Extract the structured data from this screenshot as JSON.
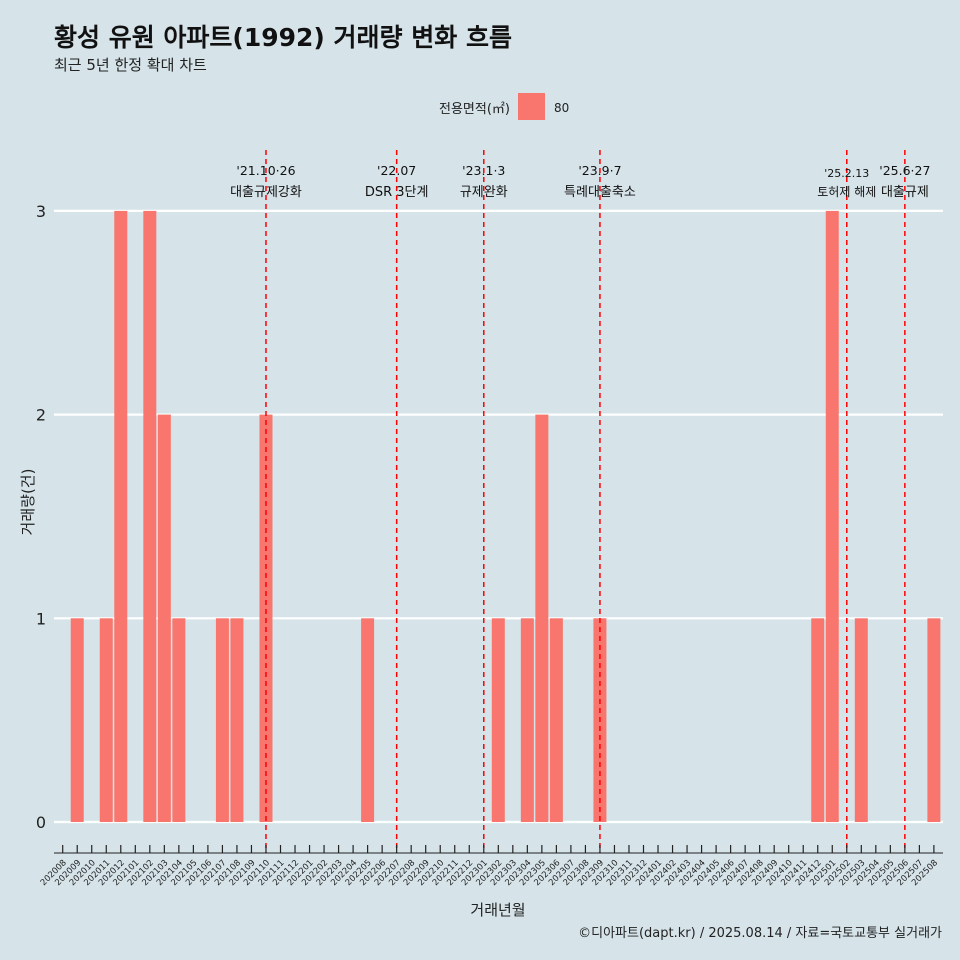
{
  "title": "황성 유원 아파트(1992) 거래량 변화 흐름",
  "subtitle": "최근 5년 한정 확대 차트",
  "caption": "©디아파트(dapt.kr) / 2025.08.14 / 자료=국토교통부 실거래가",
  "legend": {
    "title": "전용면적(㎡)",
    "entries": [
      {
        "label": "80",
        "color": "#f8766d"
      }
    ],
    "position": "top"
  },
  "chart_data": {
    "type": "bar",
    "xlabel": "거래년월",
    "ylabel": "거래량(건)",
    "ylim": [
      0,
      3
    ],
    "yticks": [
      0,
      1,
      2,
      3
    ],
    "grid": true,
    "categories": [
      "202008",
      "202009",
      "202010",
      "202011",
      "202012",
      "202101",
      "202102",
      "202103",
      "202104",
      "202105",
      "202106",
      "202107",
      "202108",
      "202109",
      "202110",
      "202111",
      "202112",
      "202201",
      "202202",
      "202203",
      "202204",
      "202205",
      "202206",
      "202207",
      "202208",
      "202209",
      "202210",
      "202211",
      "202212",
      "202301",
      "202302",
      "202303",
      "202304",
      "202305",
      "202306",
      "202307",
      "202308",
      "202309",
      "202310",
      "202311",
      "202312",
      "202401",
      "202402",
      "202403",
      "202404",
      "202405",
      "202406",
      "202407",
      "202408",
      "202409",
      "202410",
      "202411",
      "202412",
      "202501",
      "202502",
      "202503",
      "202504",
      "202505",
      "202506",
      "202507",
      "202508"
    ],
    "series": [
      {
        "name": "80",
        "color": "#f8766d",
        "values": [
          0,
          1,
          0,
          1,
          3,
          0,
          3,
          2,
          1,
          0,
          0,
          1,
          1,
          0,
          2,
          0,
          0,
          0,
          0,
          0,
          0,
          1,
          0,
          0,
          0,
          0,
          0,
          0,
          0,
          0,
          1,
          0,
          1,
          2,
          1,
          0,
          0,
          1,
          0,
          0,
          0,
          0,
          0,
          0,
          0,
          0,
          0,
          0,
          0,
          0,
          0,
          0,
          1,
          3,
          0,
          1,
          0,
          0,
          0,
          0,
          1
        ]
      }
    ],
    "annotations": [
      {
        "category": "202110",
        "date": "'21.10·26",
        "label": "대출규제강화"
      },
      {
        "category": "202207",
        "date": "'22.07",
        "label": "DSR 3단계"
      },
      {
        "category": "202301",
        "date": "'23.1·3",
        "label": "규제완화"
      },
      {
        "category": "202309",
        "date": "'23.9·7",
        "label": "특례대출축소"
      },
      {
        "category": "202502",
        "date": "'25.2.13",
        "label": "토허제 해제"
      },
      {
        "category": "202506",
        "date": "'25.6·27",
        "label": "대출규제"
      }
    ],
    "annotation_color": "#ff0000"
  }
}
